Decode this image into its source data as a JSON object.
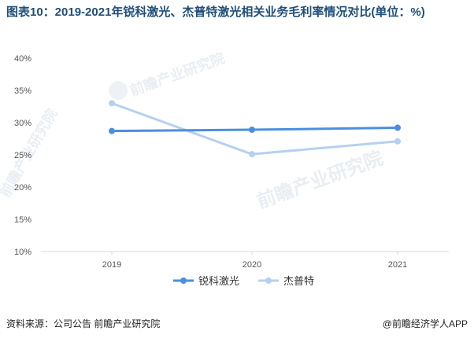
{
  "title": "图表10：2019-2021年锐科激光、杰普特激光相关业务毛利率情况对比(单位：%)",
  "source": "资料来源：公司公告 前瞻产业研究院",
  "brand": "@前瞻经济学人APP",
  "watermark": "前瞻产业研究院",
  "colors": {
    "series1": "#4a8fe0",
    "series2": "#b6d0f0",
    "title": "#1f4e79"
  },
  "chart_data": {
    "type": "line",
    "title": "图表10：2019-2021年锐科激光、杰普特激光相关业务毛利率情况对比(单位：%)",
    "xlabel": "",
    "ylabel": "",
    "x": [
      "2019",
      "2020",
      "2021"
    ],
    "ylim": [
      10,
      40
    ],
    "yticks": [
      "10%",
      "15%",
      "20%",
      "25%",
      "30%",
      "35%",
      "40%"
    ],
    "grid": false,
    "legend": "bottom",
    "series": [
      {
        "name": "锐科激光",
        "values": [
          28.7,
          28.9,
          29.2
        ],
        "color": "#4a8fe0"
      },
      {
        "name": "杰普特",
        "values": [
          33.0,
          25.1,
          27.1
        ],
        "color": "#b6d0f0"
      }
    ]
  }
}
